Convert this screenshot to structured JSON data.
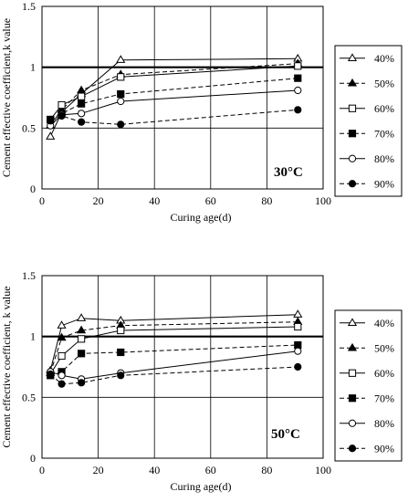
{
  "chart_data": [
    {
      "type": "line",
      "panel_label": "30°C",
      "xlabel": "Curing age(d)",
      "ylabel": "Cement effective coefficient,k value",
      "xlim": [
        0,
        100
      ],
      "ylim": [
        0,
        1.5
      ],
      "x_ticks": [
        "0",
        "20",
        "40",
        "60",
        "80",
        "100"
      ],
      "y_ticks": [
        "0",
        "0.5",
        "1",
        "1.5"
      ],
      "reference_line": 1,
      "grid": true,
      "legend_position": "right",
      "x": [
        3,
        7,
        14,
        28,
        91
      ],
      "series": [
        {
          "name": "40%",
          "marker": "triangle-open",
          "dash": "solid",
          "values": [
            0.43,
            0.63,
            0.78,
            1.06,
            1.07
          ]
        },
        {
          "name": "50%",
          "marker": "triangle-filled",
          "dash": "dashed",
          "values": [
            0.52,
            0.65,
            0.81,
            0.94,
            1.03
          ]
        },
        {
          "name": "60%",
          "marker": "square-open",
          "dash": "solid",
          "values": [
            0.57,
            0.69,
            0.76,
            0.92,
            1.01
          ]
        },
        {
          "name": "70%",
          "marker": "square-filled",
          "dash": "dashed",
          "values": [
            0.57,
            0.62,
            0.7,
            0.78,
            0.91
          ]
        },
        {
          "name": "80%",
          "marker": "circle-open",
          "dash": "solid",
          "values": [
            0.52,
            0.61,
            0.62,
            0.72,
            0.81
          ]
        },
        {
          "name": "90%",
          "marker": "circle-filled",
          "dash": "dashed",
          "values": [
            0.56,
            0.6,
            0.55,
            0.53,
            0.65
          ]
        }
      ]
    },
    {
      "type": "line",
      "panel_label": "50°C",
      "xlabel": "Curing age(d)",
      "ylabel": "Cement effective coefficient, k value",
      "xlim": [
        0,
        100
      ],
      "ylim": [
        0,
        1.5
      ],
      "x_ticks": [
        "0",
        "20",
        "40",
        "60",
        "80",
        "100"
      ],
      "y_ticks": [
        "0",
        "0.5",
        "1",
        "1.5"
      ],
      "reference_line": 1,
      "grid": true,
      "legend_position": "right",
      "x": [
        3,
        7,
        14,
        28,
        91
      ],
      "series": [
        {
          "name": "40%",
          "marker": "triangle-open",
          "dash": "solid",
          "values": [
            0.72,
            1.09,
            1.15,
            1.13,
            1.18
          ]
        },
        {
          "name": "50%",
          "marker": "triangle-filled",
          "dash": "dashed",
          "values": [
            0.7,
            0.99,
            1.05,
            1.09,
            1.12
          ]
        },
        {
          "name": "60%",
          "marker": "square-open",
          "dash": "solid",
          "values": [
            0.69,
            0.84,
            0.98,
            1.05,
            1.08
          ]
        },
        {
          "name": "70%",
          "marker": "square-filled",
          "dash": "dashed",
          "values": [
            0.68,
            0.71,
            0.86,
            0.87,
            0.93
          ]
        },
        {
          "name": "80%",
          "marker": "circle-open",
          "dash": "solid",
          "values": [
            0.71,
            0.68,
            0.65,
            0.7,
            0.88
          ]
        },
        {
          "name": "90%",
          "marker": "circle-filled",
          "dash": "dashed",
          "values": [
            0.69,
            0.61,
            0.62,
            0.68,
            0.75
          ]
        }
      ]
    }
  ]
}
